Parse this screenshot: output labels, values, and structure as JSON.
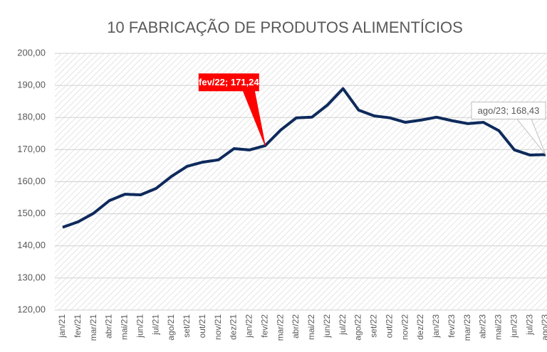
{
  "chart_data": {
    "type": "line",
    "title": "10 FABRICAÇÃO DE PRODUTOS ALIMENTÍCIOS",
    "categories": [
      "jan/21",
      "fev/21",
      "mar/21",
      "abr/21",
      "mai/21",
      "jun/21",
      "jul/21",
      "ago/21",
      "set/21",
      "out/21",
      "nov/21",
      "dez/21",
      "jan/22",
      "fev/22",
      "mar/22",
      "abr/22",
      "mai/22",
      "jun/22",
      "jul/22",
      "ago/22",
      "set/22",
      "out/22",
      "nov/22",
      "dez/22",
      "jan/23",
      "fev/23",
      "mar/23",
      "abr/23",
      "mai/23",
      "jun/23",
      "jul/23",
      "ago/23"
    ],
    "series": [
      {
        "name": "10 FABRICAÇÃO DE PRODUTOS ALIMENTÍCIOS",
        "color": "#0e2a5c",
        "values": [
          145.8,
          147.5,
          150.2,
          154.1,
          156.1,
          155.9,
          157.9,
          161.7,
          164.8,
          166.1,
          166.8,
          170.3,
          169.9,
          171.24,
          176.1,
          179.9,
          180.1,
          183.9,
          189.0,
          182.3,
          180.5,
          179.9,
          178.5,
          179.2,
          180.1,
          179.0,
          178.1,
          178.5,
          175.9,
          169.9,
          168.3,
          168.43
        ]
      }
    ],
    "ylim": [
      120,
      200
    ],
    "yticks": [
      {
        "value": 120,
        "label": "120,00"
      },
      {
        "value": 130,
        "label": "130,00"
      },
      {
        "value": 140,
        "label": "140,00"
      },
      {
        "value": 150,
        "label": "150,00"
      },
      {
        "value": 160,
        "label": "160,00"
      },
      {
        "value": 170,
        "label": "170,00"
      },
      {
        "value": 180,
        "label": "180,00"
      },
      {
        "value": 190,
        "label": "190,00"
      },
      {
        "value": 200,
        "label": "200,00"
      }
    ],
    "grid": true,
    "annotations": [
      {
        "text": "fev/22; 171,24",
        "category": "fev/22",
        "value": 171.24,
        "color": "#ff0000"
      },
      {
        "text": "ago/23; 168,43",
        "category": "ago/23",
        "value": 168.43,
        "color": "#ffffff"
      }
    ]
  }
}
